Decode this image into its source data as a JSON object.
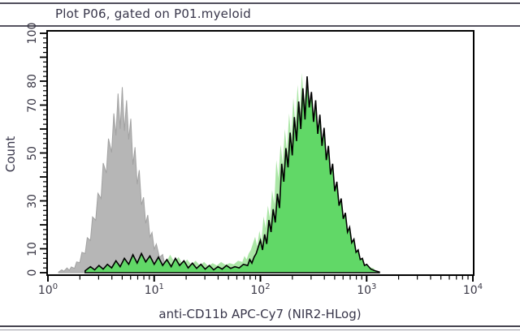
{
  "panel": {
    "title": "Plot P06, gated on P01.myeloid"
  },
  "chart_data": {
    "type": "area",
    "subtype": "flow-cytometry-histogram-overlay",
    "title": "Plot P06, gated on P01.myeloid",
    "xlabel": "anti-CD11b APC-Cy7 (NIR2-HLog)",
    "ylabel": "Count",
    "x_scale": "log10",
    "xlim_log10": [
      0,
      4
    ],
    "x_decade_exponents": [
      0,
      1,
      2,
      3,
      4
    ],
    "x_tick_base": "10",
    "ylim": [
      0,
      100
    ],
    "y_major_tick_step": 10,
    "y_minor_tick_step": 2,
    "y_labeled_ticks": [
      0,
      10,
      30,
      50,
      70,
      80,
      100
    ],
    "grid": false,
    "legend": false,
    "colors": {
      "gray_fill": "#b6b6b6",
      "gray_edge": "#a2a2a2",
      "green_fill": "#61d867",
      "green_halo": "#abe6a6",
      "green_outline": "#000000",
      "axis": "#000000",
      "text": "#3a3846"
    },
    "series": [
      {
        "name": "gray_control",
        "style": "gray",
        "peak_log10x": 0.7,
        "peak_count": 77.5,
        "points": [
          [
            0.1,
            0.3
          ],
          [
            0.13,
            1.2
          ],
          [
            0.15,
            0.6
          ],
          [
            0.18,
            2.0
          ],
          [
            0.2,
            1.0
          ],
          [
            0.22,
            2.4
          ],
          [
            0.25,
            1.8
          ],
          [
            0.27,
            4.5
          ],
          [
            0.3,
            4.2
          ],
          [
            0.32,
            8.5
          ],
          [
            0.35,
            8.0
          ],
          [
            0.37,
            14.6
          ],
          [
            0.4,
            13.5
          ],
          [
            0.42,
            23.3
          ],
          [
            0.45,
            21.9
          ],
          [
            0.47,
            33.2
          ],
          [
            0.5,
            31.0
          ],
          [
            0.52,
            45.8
          ],
          [
            0.55,
            41.6
          ],
          [
            0.57,
            56.0
          ],
          [
            0.6,
            50.2
          ],
          [
            0.62,
            66.5
          ],
          [
            0.64,
            57.3
          ],
          [
            0.66,
            74.8
          ],
          [
            0.68,
            60.1
          ],
          [
            0.7,
            77.5
          ],
          [
            0.72,
            59.2
          ],
          [
            0.74,
            72.0
          ],
          [
            0.76,
            55.6
          ],
          [
            0.78,
            64.3
          ],
          [
            0.8,
            45.1
          ],
          [
            0.82,
            52.4
          ],
          [
            0.84,
            36.9
          ],
          [
            0.86,
            42.8
          ],
          [
            0.88,
            28.3
          ],
          [
            0.9,
            31.5
          ],
          [
            0.92,
            20.6
          ],
          [
            0.94,
            24.1
          ],
          [
            0.96,
            14.9
          ],
          [
            0.98,
            16.8
          ],
          [
            1.0,
            9.8
          ],
          [
            1.02,
            12.0
          ],
          [
            1.05,
            6.4
          ],
          [
            1.08,
            7.6
          ],
          [
            1.1,
            3.5
          ],
          [
            1.13,
            4.8
          ],
          [
            1.16,
            2.2
          ],
          [
            1.2,
            2.8
          ],
          [
            1.25,
            1.0
          ],
          [
            1.3,
            0.5
          ],
          [
            1.35,
            0.8
          ],
          [
            1.4,
            0.3
          ]
        ]
      },
      {
        "name": "cd11b_green",
        "style": "green",
        "halo_offset_log10": -0.05,
        "peak_log10x": 2.44,
        "peak_count": 82,
        "points": [
          [
            0.35,
            0.8
          ],
          [
            0.4,
            2.5
          ],
          [
            0.44,
            1.2
          ],
          [
            0.48,
            3.0
          ],
          [
            0.52,
            1.5
          ],
          [
            0.56,
            3.5
          ],
          [
            0.6,
            2.0
          ],
          [
            0.64,
            5.0
          ],
          [
            0.68,
            2.5
          ],
          [
            0.72,
            6.0
          ],
          [
            0.76,
            3.5
          ],
          [
            0.8,
            7.5
          ],
          [
            0.84,
            4.0
          ],
          [
            0.88,
            8.0
          ],
          [
            0.92,
            4.5
          ],
          [
            0.96,
            7.0
          ],
          [
            1.0,
            3.5
          ],
          [
            1.04,
            6.5
          ],
          [
            1.08,
            3.0
          ],
          [
            1.12,
            5.5
          ],
          [
            1.16,
            2.5
          ],
          [
            1.2,
            6.0
          ],
          [
            1.24,
            3.0
          ],
          [
            1.28,
            5.0
          ],
          [
            1.32,
            2.0
          ],
          [
            1.36,
            4.0
          ],
          [
            1.4,
            1.8
          ],
          [
            1.44,
            3.5
          ],
          [
            1.48,
            1.5
          ],
          [
            1.52,
            3.0
          ],
          [
            1.56,
            1.2
          ],
          [
            1.6,
            2.5
          ],
          [
            1.64,
            1.5
          ],
          [
            1.68,
            3.0
          ],
          [
            1.72,
            1.8
          ],
          [
            1.76,
            2.5
          ],
          [
            1.8,
            2.0
          ],
          [
            1.84,
            3.5
          ],
          [
            1.88,
            3.0
          ],
          [
            1.9,
            5.5
          ],
          [
            1.92,
            4.0
          ],
          [
            1.94,
            6.5
          ],
          [
            1.96,
            8.0
          ],
          [
            2.0,
            13.5
          ],
          [
            2.02,
            9.5
          ],
          [
            2.04,
            16.0
          ],
          [
            2.06,
            12.0
          ],
          [
            2.08,
            22.0
          ],
          [
            2.1,
            17.0
          ],
          [
            2.12,
            26.5
          ],
          [
            2.14,
            21.0
          ],
          [
            2.16,
            33.0
          ],
          [
            2.18,
            27.0
          ],
          [
            2.2,
            45.5
          ],
          [
            2.22,
            38.0
          ],
          [
            2.24,
            52.0
          ],
          [
            2.26,
            44.0
          ],
          [
            2.28,
            58.5
          ],
          [
            2.3,
            49.0
          ],
          [
            2.32,
            65.0
          ],
          [
            2.34,
            55.0
          ],
          [
            2.36,
            71.5
          ],
          [
            2.38,
            60.0
          ],
          [
            2.4,
            77.0
          ],
          [
            2.42,
            64.0
          ],
          [
            2.44,
            82.0
          ],
          [
            2.46,
            69.0
          ],
          [
            2.48,
            75.5
          ],
          [
            2.5,
            63.0
          ],
          [
            2.52,
            72.0
          ],
          [
            2.54,
            58.0
          ],
          [
            2.56,
            66.0
          ],
          [
            2.58,
            53.0
          ],
          [
            2.6,
            60.5
          ],
          [
            2.62,
            47.0
          ],
          [
            2.64,
            53.0
          ],
          [
            2.66,
            41.0
          ],
          [
            2.68,
            45.5
          ],
          [
            2.7,
            34.0
          ],
          [
            2.72,
            38.0
          ],
          [
            2.74,
            28.0
          ],
          [
            2.76,
            31.0
          ],
          [
            2.78,
            22.5
          ],
          [
            2.8,
            25.0
          ],
          [
            2.82,
            17.0
          ],
          [
            2.84,
            19.0
          ],
          [
            2.86,
            12.5
          ],
          [
            2.88,
            14.0
          ],
          [
            2.9,
            8.5
          ],
          [
            2.92,
            9.5
          ],
          [
            2.94,
            5.5
          ],
          [
            2.96,
            6.0
          ],
          [
            2.98,
            3.0
          ],
          [
            3.0,
            3.5
          ],
          [
            3.04,
            1.5
          ],
          [
            3.08,
            0.8
          ],
          [
            3.12,
            0.3
          ]
        ]
      }
    ]
  }
}
